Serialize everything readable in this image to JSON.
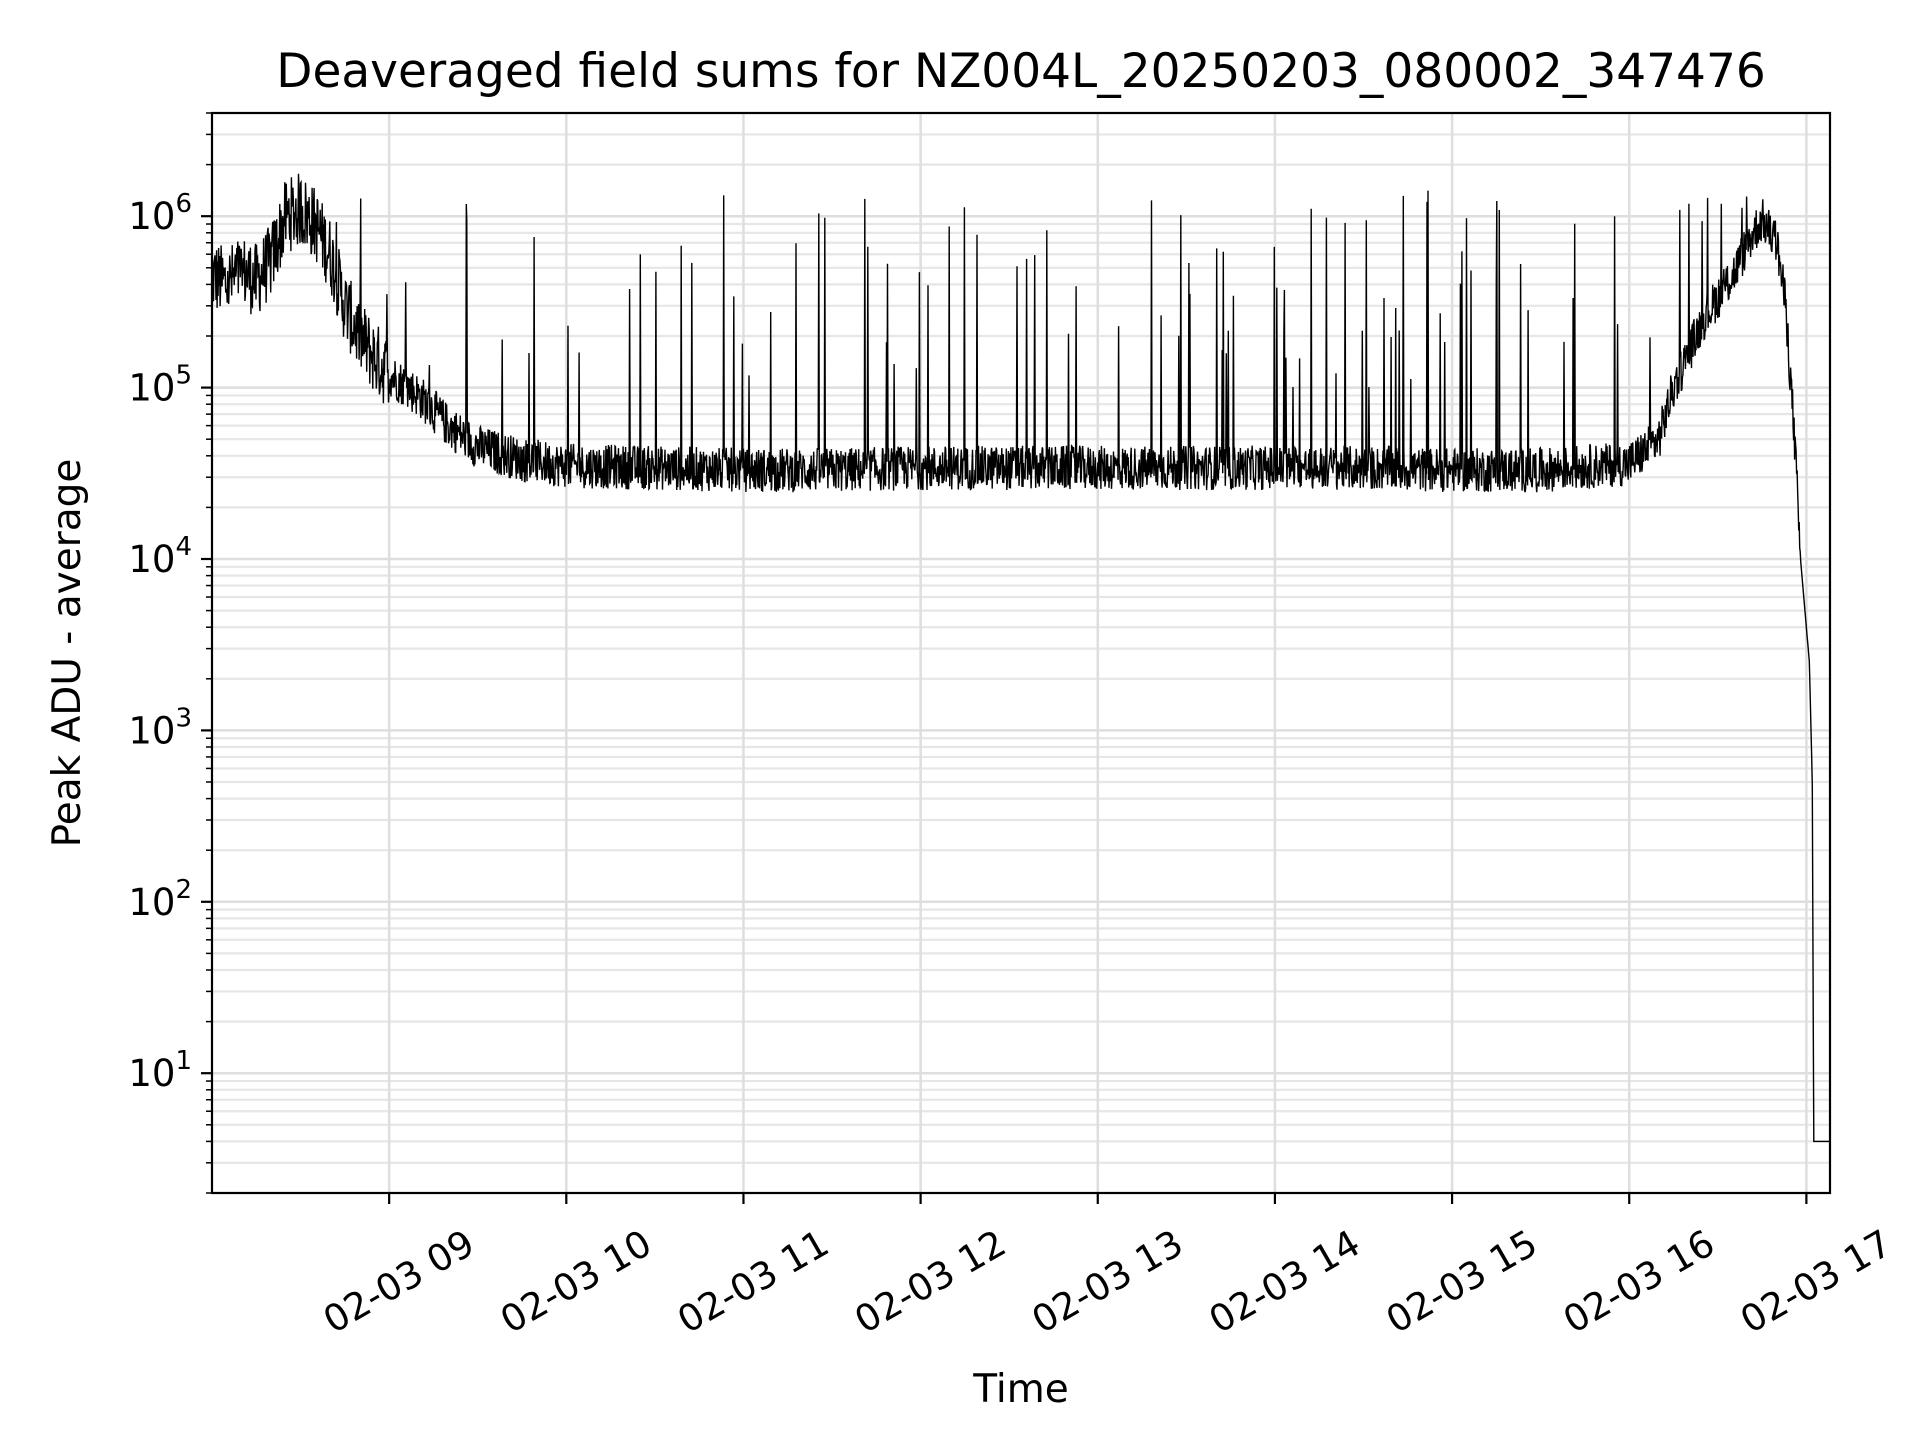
{
  "chart_data": {
    "type": "line",
    "title": "Deaveraged field sums for NZ004L_20250203_080002_347476",
    "xlabel": "Time",
    "ylabel": "Peak ADU - average",
    "yscale": "log",
    "ylim": [
      2,
      4000000
    ],
    "xlim": [
      "2025-02-03 08:00",
      "2025-02-03 17:08"
    ],
    "grid": true,
    "x_ticks": [
      {
        "value": "2025-02-03 09:00",
        "label": "02-03 09"
      },
      {
        "value": "2025-02-03 10:00",
        "label": "02-03 10"
      },
      {
        "value": "2025-02-03 11:00",
        "label": "02-03 11"
      },
      {
        "value": "2025-02-03 12:00",
        "label": "02-03 12"
      },
      {
        "value": "2025-02-03 13:00",
        "label": "02-03 13"
      },
      {
        "value": "2025-02-03 14:00",
        "label": "02-03 14"
      },
      {
        "value": "2025-02-03 15:00",
        "label": "02-03 15"
      },
      {
        "value": "2025-02-03 16:00",
        "label": "02-03 16"
      },
      {
        "value": "2025-02-03 17:00",
        "label": "02-03 17"
      }
    ],
    "y_ticks": [
      {
        "value": 10,
        "base": "10",
        "exp": "1"
      },
      {
        "value": 100,
        "base": "10",
        "exp": "2"
      },
      {
        "value": 1000,
        "base": "10",
        "exp": "3"
      },
      {
        "value": 10000,
        "base": "10",
        "exp": "4"
      },
      {
        "value": 100000,
        "base": "10",
        "exp": "5"
      },
      {
        "value": 1000000,
        "base": "10",
        "exp": "6"
      }
    ],
    "series": [
      {
        "color": "#000000",
        "points": [
          [
            "2025-02-03 08:00",
            450000
          ],
          [
            "2025-02-03 08:05",
            400000
          ],
          [
            "2025-02-03 08:10",
            480000
          ],
          [
            "2025-02-03 08:15",
            420000
          ],
          [
            "2025-02-03 08:20",
            550000
          ],
          [
            "2025-02-03 08:25",
            1000000
          ],
          [
            "2025-02-03 08:30",
            1100000
          ],
          [
            "2025-02-03 08:35",
            900000
          ],
          [
            "2025-02-03 08:40",
            600000
          ],
          [
            "2025-02-03 08:45",
            300000
          ],
          [
            "2025-02-03 08:50",
            200000
          ],
          [
            "2025-02-03 08:55",
            150000
          ],
          [
            "2025-02-03 09:00",
            120000
          ],
          [
            "2025-02-03 09:10",
            90000
          ],
          [
            "2025-02-03 09:20",
            60000
          ],
          [
            "2025-02-03 09:30",
            45000
          ],
          [
            "2025-02-03 09:45",
            38000
          ],
          [
            "2025-02-03 10:00",
            35000
          ],
          [
            "2025-02-03 10:30",
            34000
          ],
          [
            "2025-02-03 11:00",
            33000
          ],
          [
            "2025-02-03 11:30",
            33000
          ],
          [
            "2025-02-03 12:00",
            34000
          ],
          [
            "2025-02-03 12:30",
            34000
          ],
          [
            "2025-02-03 13:00",
            34000
          ],
          [
            "2025-02-03 13:30",
            34000
          ],
          [
            "2025-02-03 14:00",
            34000
          ],
          [
            "2025-02-03 14:30",
            34000
          ],
          [
            "2025-02-03 15:00",
            33000
          ],
          [
            "2025-02-03 15:30",
            33000
          ],
          [
            "2025-02-03 16:00",
            36000
          ],
          [
            "2025-02-03 16:10",
            50000
          ],
          [
            "2025-02-03 16:15",
            100000
          ],
          [
            "2025-02-03 16:25",
            250000
          ],
          [
            "2025-02-03 16:35",
            450000
          ],
          [
            "2025-02-03 16:42",
            800000
          ],
          [
            "2025-02-03 16:45",
            950000
          ],
          [
            "2025-02-03 16:50",
            700000
          ],
          [
            "2025-02-03 16:53",
            300000
          ],
          [
            "2025-02-03 16:56",
            50000
          ],
          [
            "2025-02-03 16:58",
            10000
          ],
          [
            "2025-02-03 17:00",
            4000
          ],
          [
            "2025-02-03 17:01",
            2500
          ],
          [
            "2025-02-03 17:02",
            500
          ],
          [
            "2025-02-03 17:02:30",
            4
          ],
          [
            "2025-02-03 17:08",
            4
          ]
        ]
      }
    ]
  }
}
